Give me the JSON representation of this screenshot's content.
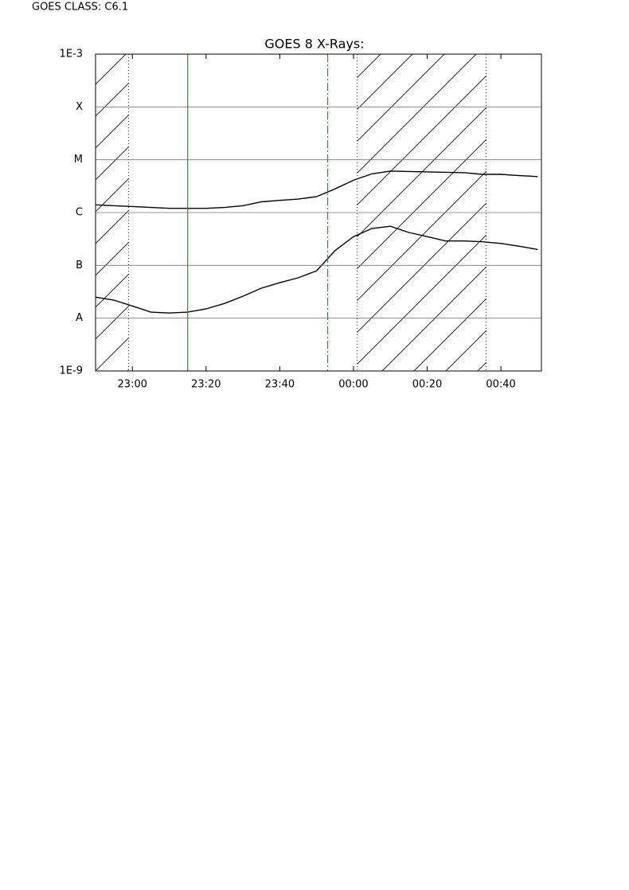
{
  "header": {
    "text": "GOES CLASS: C6.1"
  },
  "chart_data": {
    "type": "line",
    "title": "GOES 8 X-Rays:",
    "log_y": true,
    "grid": true,
    "x": [
      "22:50",
      "22:55",
      "23:00",
      "23:05",
      "23:10",
      "23:15",
      "23:20",
      "23:25",
      "23:30",
      "23:35",
      "23:40",
      "23:45",
      "23:50",
      "23:55",
      "00:00",
      "00:05",
      "00:10",
      "00:15",
      "00:20",
      "00:25",
      "00:30",
      "00:35",
      "00:40",
      "00:45",
      "00:50"
    ],
    "xlim": [
      "22:50",
      "00:51"
    ],
    "xticks": [
      "23:00",
      "23:20",
      "23:40",
      "00:00",
      "00:20",
      "00:40"
    ],
    "ylim": [
      1e-09,
      0.001
    ],
    "yticks": [
      {
        "value": 1e-09,
        "label": "1E-9"
      },
      {
        "value": 1e-08,
        "label": "A"
      },
      {
        "value": 1e-07,
        "label": "B"
      },
      {
        "value": 1e-06,
        "label": "C"
      },
      {
        "value": 1e-05,
        "label": "M"
      },
      {
        "value": 0.0001,
        "label": "X"
      },
      {
        "value": 0.001,
        "label": "1E-3"
      }
    ],
    "series": [
      {
        "color": "#000000",
        "values": [
          1.4e-06,
          1.35e-06,
          1.3e-06,
          1.25e-06,
          1.2e-06,
          1.2e-06,
          1.2e-06,
          1.25e-06,
          1.35e-06,
          1.6e-06,
          1.7e-06,
          1.8e-06,
          2e-06,
          2.8e-06,
          4.1e-06,
          5.4e-06,
          6.1e-06,
          6e-06,
          5.9e-06,
          5.8e-06,
          5.7e-06,
          5.3e-06,
          5.3e-06,
          5e-06,
          4.8e-06
        ]
      },
      {
        "color": "#000000",
        "values": [
          2.5e-08,
          2.2e-08,
          1.7e-08,
          1.3e-08,
          1.25e-08,
          1.3e-08,
          1.5e-08,
          1.9e-08,
          2.6e-08,
          3.7e-08,
          4.7e-08,
          5.8e-08,
          7.9e-08,
          1.9e-07,
          3.5e-07,
          5e-07,
          5.5e-07,
          4.2e-07,
          3.5e-07,
          2.9e-07,
          2.9e-07,
          2.8e-07,
          2.6e-07,
          2.3e-07,
          2e-07
        ]
      }
    ],
    "shaded": [
      [
        "22:50",
        "22:59"
      ],
      [
        "00:01",
        "00:36"
      ]
    ],
    "markers": [
      {
        "time": "23:15",
        "style": "solid"
      },
      {
        "time": "23:53",
        "style": "dashdot"
      }
    ],
    "marker_color": "#00b000"
  }
}
